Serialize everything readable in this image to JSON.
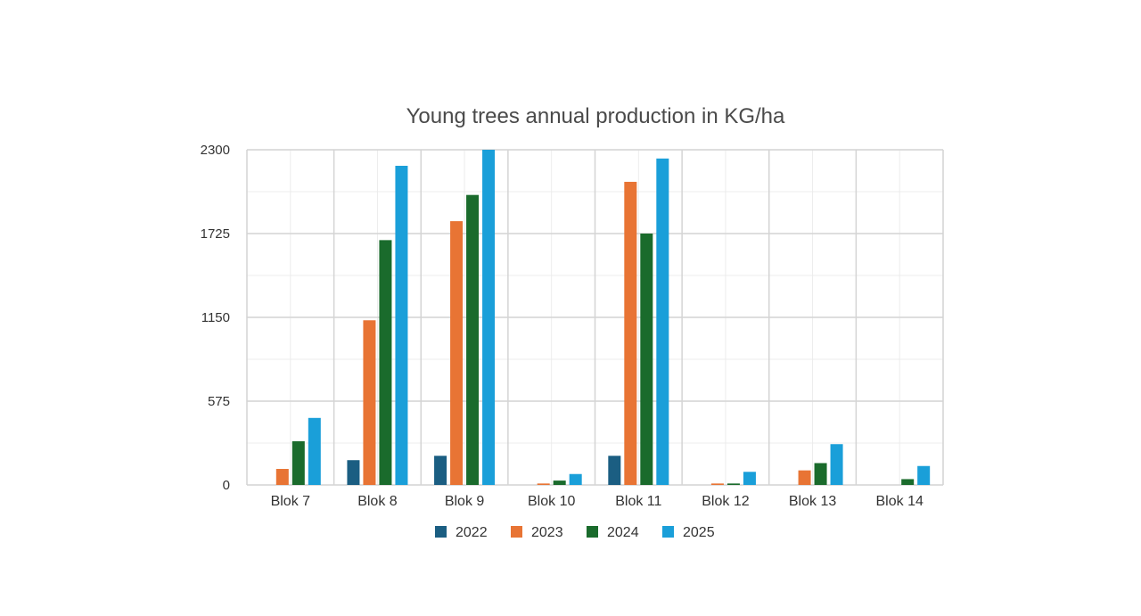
{
  "chart_data": {
    "type": "bar",
    "title": "Young trees annual production in KG/ha",
    "xlabel": "",
    "ylabel": "",
    "categories": [
      "Blok 7",
      "Blok 8",
      "Blok 9",
      "Blok 10",
      "Blok 11",
      "Blok 12",
      "Blok 13",
      "Blok 14"
    ],
    "series": [
      {
        "name": "2022",
        "color": "#1b5e82",
        "values": [
          0,
          170,
          200,
          0,
          200,
          0,
          0,
          0
        ]
      },
      {
        "name": "2023",
        "color": "#e87434",
        "values": [
          110,
          1130,
          1810,
          10,
          2080,
          10,
          100,
          0
        ]
      },
      {
        "name": "2024",
        "color": "#1a6b2c",
        "values": [
          300,
          1680,
          1990,
          30,
          1725,
          10,
          150,
          40
        ]
      },
      {
        "name": "2025",
        "color": "#1a9fd9",
        "values": [
          460,
          2190,
          2300,
          75,
          2240,
          90,
          280,
          130
        ]
      }
    ],
    "ylim": [
      0,
      2300
    ],
    "yticks": [
      0,
      575,
      1150,
      1725,
      2300
    ],
    "grid": true,
    "legend_position": "bottom"
  }
}
